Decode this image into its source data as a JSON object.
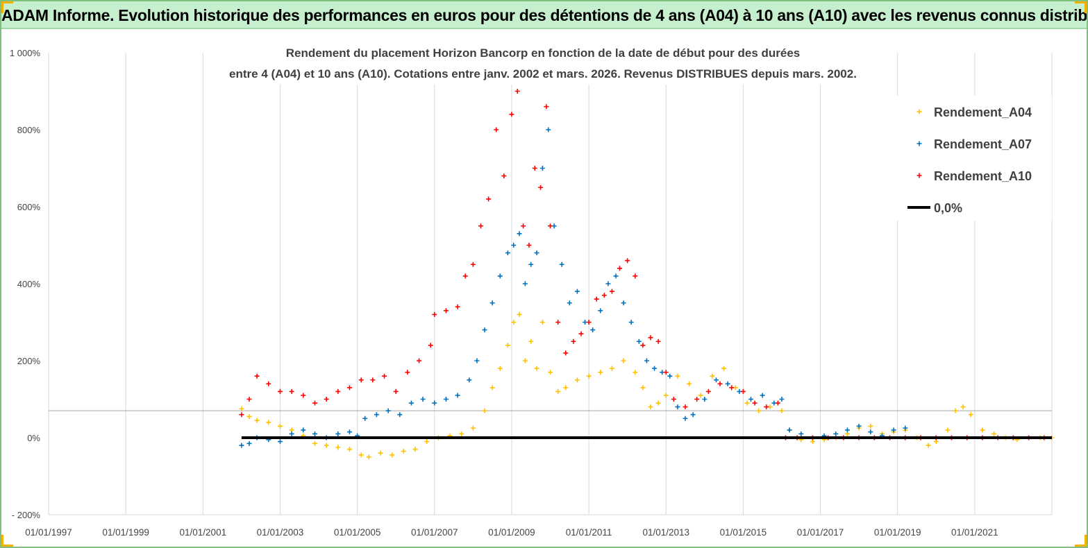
{
  "header": {
    "title": "ADAM Informe. Evolution historique des performances en euros pour des détentions de 4 ans (A04) à 10 ans (A10) avec les revenus connus distribués"
  },
  "chart_data": {
    "type": "scatter",
    "title_line1": "Rendement du placement Horizon Bancorp en fonction de la date de début pour des durées",
    "title_line2": "entre 4 (A04) et 10 ans (A10). Cotations entre janv. 2002 et mars. 2026. Revenus DISTRIBUES depuis mars. 2002.",
    "xlabel": "",
    "ylabel": "",
    "xlim": [
      1997.0,
      2023.0
    ],
    "ylim": [
      -200,
      1000
    ],
    "y_ticks": [
      {
        "value": 1000,
        "label": "1 000%"
      },
      {
        "value": 800,
        "label": "800%"
      },
      {
        "value": 600,
        "label": "600%"
      },
      {
        "value": 400,
        "label": "400%"
      },
      {
        "value": 200,
        "label": "200%"
      },
      {
        "value": 0,
        "label": "0%"
      },
      {
        "value": -200,
        "label": "- 200%"
      }
    ],
    "x_ticks": [
      {
        "value": 1997,
        "label": "01/01/1997"
      },
      {
        "value": 1999,
        "label": "01/01/1999"
      },
      {
        "value": 2001,
        "label": "01/01/2001"
      },
      {
        "value": 2003,
        "label": "01/01/2003"
      },
      {
        "value": 2005,
        "label": "01/01/2005"
      },
      {
        "value": 2007,
        "label": "01/01/2007"
      },
      {
        "value": 2009,
        "label": "01/01/2009"
      },
      {
        "value": 2011,
        "label": "01/01/2011"
      },
      {
        "value": 2013,
        "label": "01/01/2013"
      },
      {
        "value": 2015,
        "label": "01/01/2015"
      },
      {
        "value": 2017,
        "label": "01/01/2017"
      },
      {
        "value": 2019,
        "label": "01/01/2019"
      },
      {
        "value": 2021,
        "label": "01/01/2021"
      }
    ],
    "grid": true,
    "reference_hline": 70,
    "legend_position": "top-right",
    "series": [
      {
        "name": "Rendement_A04",
        "color": "#ffc000",
        "marker": "plus",
        "x": [
          2002.0,
          2002.2,
          2002.4,
          2002.7,
          2003.0,
          2003.3,
          2003.6,
          2003.9,
          2004.2,
          2004.5,
          2004.8,
          2005.1,
          2005.3,
          2005.6,
          2005.9,
          2006.2,
          2006.5,
          2006.8,
          2007.1,
          2007.4,
          2007.7,
          2008.0,
          2008.3,
          2008.5,
          2008.7,
          2008.9,
          2009.05,
          2009.2,
          2009.35,
          2009.5,
          2009.65,
          2009.8,
          2010.0,
          2010.2,
          2010.4,
          2010.7,
          2011.0,
          2011.3,
          2011.6,
          2011.9,
          2012.2,
          2012.4,
          2012.6,
          2012.8,
          2013.0,
          2013.3,
          2013.6,
          2013.9,
          2014.2,
          2014.5,
          2014.8,
          2015.1,
          2015.4,
          2015.7,
          2016.0,
          2016.2,
          2016.5,
          2016.8,
          2017.1,
          2017.4,
          2017.7,
          2018.0,
          2018.3,
          2018.6,
          2018.9,
          2019.2,
          2019.5,
          2019.8,
          2020.0,
          2020.3,
          2020.5,
          2020.7,
          2020.9,
          2021.2,
          2021.5,
          2021.8,
          2022.1,
          2022.4,
          2022.7,
          2023.0
        ],
        "y": [
          75,
          55,
          45,
          40,
          30,
          20,
          5,
          -15,
          -20,
          -25,
          -30,
          -45,
          -50,
          -40,
          -45,
          -35,
          -30,
          -10,
          0,
          5,
          10,
          25,
          70,
          130,
          180,
          240,
          300,
          320,
          200,
          250,
          180,
          300,
          170,
          120,
          130,
          150,
          160,
          170,
          180,
          200,
          170,
          130,
          80,
          90,
          110,
          160,
          140,
          110,
          160,
          180,
          130,
          90,
          70,
          80,
          70,
          20,
          -5,
          -10,
          -5,
          0,
          10,
          25,
          30,
          10,
          15,
          20,
          0,
          -20,
          -10,
          20,
          70,
          80,
          60,
          20,
          10,
          0,
          -5,
          0,
          0,
          0
        ]
      },
      {
        "name": "Rendement_A07",
        "color": "#0070c0",
        "marker": "plus",
        "x": [
          2002.0,
          2002.2,
          2002.4,
          2002.7,
          2003.0,
          2003.3,
          2003.6,
          2003.9,
          2004.2,
          2004.5,
          2004.8,
          2005.0,
          2005.2,
          2005.5,
          2005.8,
          2006.1,
          2006.4,
          2006.7,
          2007.0,
          2007.3,
          2007.6,
          2007.9,
          2008.1,
          2008.3,
          2008.5,
          2008.7,
          2008.9,
          2009.05,
          2009.2,
          2009.35,
          2009.5,
          2009.65,
          2009.8,
          2009.95,
          2010.1,
          2010.3,
          2010.5,
          2010.7,
          2010.9,
          2011.1,
          2011.3,
          2011.5,
          2011.7,
          2011.9,
          2012.1,
          2012.3,
          2012.5,
          2012.7,
          2012.9,
          2013.1,
          2013.3,
          2013.5,
          2013.7,
          2014.0,
          2014.3,
          2014.6,
          2014.9,
          2015.2,
          2015.5,
          2015.8,
          2016.0,
          2016.2,
          2016.5,
          2016.8,
          2017.1,
          2017.4,
          2017.7,
          2018.0,
          2018.3,
          2018.6,
          2018.9,
          2019.2
        ],
        "y": [
          -20,
          -15,
          0,
          -5,
          -10,
          10,
          20,
          10,
          0,
          10,
          15,
          5,
          50,
          60,
          70,
          60,
          90,
          100,
          90,
          100,
          110,
          150,
          200,
          280,
          350,
          420,
          480,
          500,
          530,
          400,
          450,
          480,
          700,
          800,
          550,
          450,
          350,
          380,
          300,
          280,
          330,
          400,
          420,
          350,
          300,
          250,
          200,
          180,
          170,
          160,
          80,
          50,
          60,
          100,
          150,
          140,
          120,
          100,
          110,
          90,
          100,
          20,
          10,
          0,
          5,
          10,
          20,
          30,
          15,
          5,
          20,
          25
        ]
      },
      {
        "name": "Rendement_A10",
        "color": "#ff0000",
        "marker": "plus",
        "x": [
          2002.0,
          2002.2,
          2002.4,
          2002.7,
          2003.0,
          2003.3,
          2003.6,
          2003.9,
          2004.2,
          2004.5,
          2004.8,
          2005.1,
          2005.4,
          2005.7,
          2006.0,
          2006.3,
          2006.6,
          2006.9,
          2007.0,
          2007.3,
          2007.6,
          2007.8,
          2008.0,
          2008.2,
          2008.4,
          2008.6,
          2008.8,
          2009.0,
          2009.15,
          2009.3,
          2009.45,
          2009.6,
          2009.75,
          2009.9,
          2010.0,
          2010.2,
          2010.4,
          2010.6,
          2010.8,
          2011.0,
          2011.2,
          2011.4,
          2011.6,
          2011.8,
          2012.0,
          2012.2,
          2012.4,
          2012.6,
          2012.8,
          2013.0,
          2013.2,
          2013.5,
          2013.8,
          2014.1,
          2014.4,
          2014.7,
          2015.0,
          2015.3,
          2015.6,
          2015.9,
          2016.1,
          2016.4,
          2016.8,
          2017.2,
          2017.6,
          2018.0,
          2018.4,
          2018.8,
          2019.2,
          2019.6,
          2020.0,
          2020.4,
          2020.8,
          2021.2,
          2021.6,
          2022.0,
          2022.4,
          2022.8
        ],
        "y": [
          60,
          100,
          160,
          140,
          120,
          120,
          110,
          90,
          100,
          120,
          130,
          150,
          150,
          160,
          120,
          170,
          200,
          240,
          320,
          330,
          340,
          420,
          450,
          550,
          620,
          800,
          680,
          840,
          900,
          550,
          500,
          700,
          650,
          860,
          550,
          300,
          220,
          250,
          270,
          300,
          360,
          370,
          380,
          440,
          460,
          420,
          240,
          260,
          250,
          170,
          100,
          80,
          100,
          120,
          140,
          130,
          120,
          90,
          80,
          90,
          0,
          0,
          0,
          0,
          0,
          0,
          0,
          0,
          0,
          0,
          0,
          0,
          0,
          0,
          0,
          0,
          0,
          0
        ]
      },
      {
        "name": "0,0%",
        "color": "#000000",
        "marker": "line",
        "x": [
          2002.0,
          2023.0
        ],
        "y": [
          0,
          0
        ]
      }
    ]
  }
}
